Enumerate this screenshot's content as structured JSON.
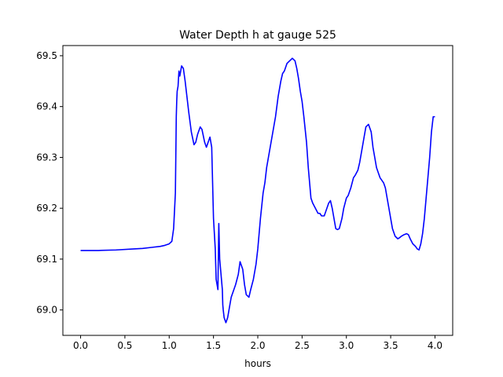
{
  "chart_data": {
    "type": "line",
    "title": "Water Depth h at gauge 525",
    "xlabel": "hours",
    "ylabel": "",
    "xlim": [
      -0.2,
      4.2
    ],
    "ylim": [
      68.95,
      69.52
    ],
    "xticks": [
      0.0,
      0.5,
      1.0,
      1.5,
      2.0,
      2.5,
      3.0,
      3.5,
      4.0
    ],
    "xtick_labels": [
      "0.0",
      "0.5",
      "1.0",
      "1.5",
      "2.0",
      "2.5",
      "3.0",
      "3.5",
      "4.0"
    ],
    "yticks": [
      69.0,
      69.1,
      69.2,
      69.3,
      69.4,
      69.5
    ],
    "ytick_labels": [
      "69.0",
      "69.1",
      "69.2",
      "69.3",
      "69.4",
      "69.5"
    ],
    "grid": false,
    "series": [
      {
        "color": "#0000ff",
        "x": [
          0.0,
          0.2,
          0.4,
          0.6,
          0.7,
          0.8,
          0.9,
          0.95,
          1.0,
          1.03,
          1.05,
          1.07,
          1.08,
          1.085,
          1.09,
          1.1,
          1.11,
          1.12,
          1.13,
          1.14,
          1.16,
          1.18,
          1.2,
          1.22,
          1.25,
          1.28,
          1.3,
          1.32,
          1.35,
          1.37,
          1.4,
          1.42,
          1.44,
          1.46,
          1.48,
          1.5,
          1.52,
          1.53,
          1.55,
          1.56,
          1.57,
          1.58,
          1.6,
          1.605,
          1.61,
          1.62,
          1.64,
          1.66,
          1.68,
          1.7,
          1.72,
          1.75,
          1.78,
          1.8,
          1.83,
          1.85,
          1.87,
          1.9,
          1.92,
          1.95,
          1.98,
          2.0,
          2.03,
          2.06,
          2.08,
          2.1,
          2.12,
          2.15,
          2.18,
          2.2,
          2.23,
          2.26,
          2.28,
          2.3,
          2.33,
          2.36,
          2.39,
          2.42,
          2.44,
          2.46,
          2.48,
          2.5,
          2.52,
          2.55,
          2.57,
          2.6,
          2.62,
          2.65,
          2.68,
          2.7,
          2.72,
          2.75,
          2.78,
          2.8,
          2.82,
          2.84,
          2.86,
          2.88,
          2.9,
          2.92,
          2.95,
          2.97,
          3.0,
          3.02,
          3.05,
          3.08,
          3.1,
          3.13,
          3.15,
          3.18,
          3.2,
          3.22,
          3.25,
          3.28,
          3.3,
          3.32,
          3.34,
          3.36,
          3.38,
          3.4,
          3.42,
          3.44,
          3.46,
          3.48,
          3.5,
          3.52,
          3.55,
          3.58,
          3.6,
          3.62,
          3.65,
          3.68,
          3.7,
          3.72,
          3.75,
          3.78,
          3.8,
          3.82,
          3.84,
          3.86,
          3.88,
          3.9,
          3.92,
          3.94,
          3.96,
          3.98,
          4.0
        ],
        "y": [
          69.117,
          69.117,
          69.118,
          69.12,
          69.121,
          69.123,
          69.125,
          69.127,
          69.13,
          69.135,
          69.16,
          69.23,
          69.38,
          69.41,
          69.43,
          69.44,
          69.47,
          69.46,
          69.47,
          69.48,
          69.475,
          69.45,
          69.42,
          69.39,
          69.35,
          69.325,
          69.33,
          69.345,
          69.36,
          69.355,
          69.33,
          69.32,
          69.33,
          69.34,
          69.32,
          69.18,
          69.12,
          69.06,
          69.04,
          69.17,
          69.1,
          69.08,
          69.04,
          69.01,
          69.0,
          68.985,
          68.975,
          68.985,
          69.005,
          69.025,
          69.035,
          69.05,
          69.07,
          69.095,
          69.08,
          69.05,
          69.03,
          69.025,
          69.04,
          69.06,
          69.09,
          69.12,
          69.18,
          69.23,
          69.25,
          69.28,
          69.3,
          69.33,
          69.36,
          69.38,
          69.42,
          69.45,
          69.465,
          69.47,
          69.485,
          69.49,
          69.495,
          69.49,
          69.475,
          69.455,
          69.43,
          69.41,
          69.38,
          69.33,
          69.28,
          69.22,
          69.21,
          69.2,
          69.19,
          69.19,
          69.185,
          69.185,
          69.2,
          69.21,
          69.215,
          69.2,
          69.18,
          69.16,
          69.158,
          69.16,
          69.18,
          69.2,
          69.22,
          69.225,
          69.24,
          69.26,
          69.265,
          69.275,
          69.29,
          69.32,
          69.34,
          69.36,
          69.365,
          69.35,
          69.32,
          69.3,
          69.28,
          69.27,
          69.26,
          69.255,
          69.25,
          69.24,
          69.22,
          69.2,
          69.18,
          69.16,
          69.145,
          69.14,
          69.142,
          69.145,
          69.148,
          69.15,
          69.148,
          69.14,
          69.13,
          69.125,
          69.12,
          69.118,
          69.13,
          69.15,
          69.18,
          69.22,
          69.26,
          69.3,
          69.35,
          69.38,
          69.38
        ]
      }
    ]
  }
}
